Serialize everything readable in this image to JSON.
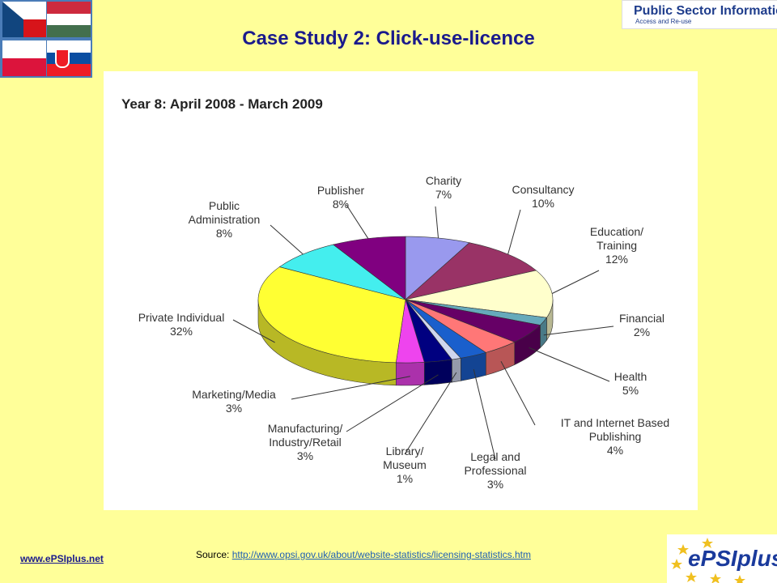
{
  "header": {
    "title": "Case Study 2: Click-use-licence",
    "logo_text": "Public Sector Information",
    "logo_subtext": "Access and Re-use"
  },
  "footer": {
    "site_link": "www.ePSIplus.net",
    "source_label": "Source:",
    "source_url": "http://www.opsi.gov.uk/about/website-statistics/licensing-statistics.htm",
    "logo_text": "ePSIplus"
  },
  "chart_data": {
    "type": "pie",
    "title": "Year 8: April 2008 - March 2009",
    "slices": [
      {
        "label": "Charity",
        "value": 7,
        "value_label": "7%",
        "color": "#9999ee"
      },
      {
        "label": "Consultancy",
        "value": 10,
        "value_label": "10%",
        "color": "#993366"
      },
      {
        "label": "Education/ Training",
        "value": 12,
        "value_label": "12%",
        "color": "#ffffcc"
      },
      {
        "label": "Financial",
        "value": 2,
        "value_label": "2%",
        "color": "#66aabb"
      },
      {
        "label": "Health",
        "value": 5,
        "value_label": "5%",
        "color": "#660066"
      },
      {
        "label": "IT and Internet Based Publishing",
        "value": 4,
        "value_label": "4%",
        "color": "#ff7777"
      },
      {
        "label": "Legal and Professional",
        "value": 3,
        "value_label": "3%",
        "color": "#1a5fcc"
      },
      {
        "label": "Library/ Museum",
        "value": 1,
        "value_label": "1%",
        "color": "#cfd6ee"
      },
      {
        "label": "Manufacturing/ Industry/Retail",
        "value": 3,
        "value_label": "3%",
        "color": "#000080"
      },
      {
        "label": "Marketing/Media",
        "value": 3,
        "value_label": "3%",
        "color": "#ee44ee"
      },
      {
        "label": "Private Individual",
        "value": 32,
        "value_label": "32%",
        "color": "#ffff33"
      },
      {
        "label": "Public Administration",
        "value": 8,
        "value_label": "8%",
        "color": "#44eeee"
      },
      {
        "label": "Publisher",
        "value": 8,
        "value_label": "8%",
        "color": "#800080"
      }
    ]
  }
}
